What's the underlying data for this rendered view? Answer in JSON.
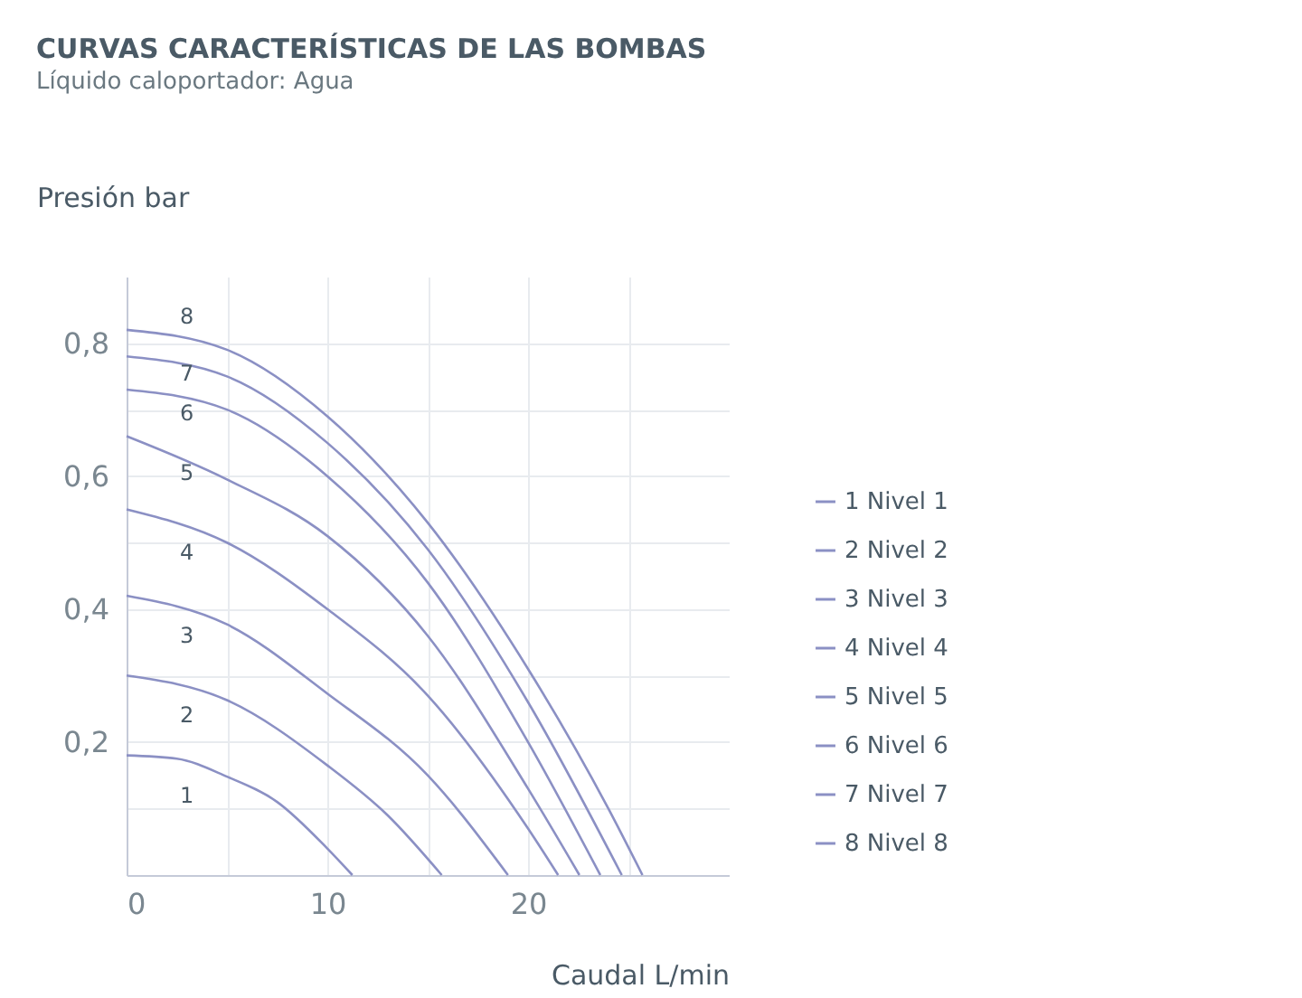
{
  "chart_data": {
    "type": "line",
    "title": "CURVAS CARACTERÍSTICAS DE LAS BOMBAS",
    "subtitle": "Líquido caloportador: Agua",
    "xlabel": "Caudal L/min",
    "ylabel": "Presión bar",
    "xlim": [
      0,
      30
    ],
    "ylim": [
      0,
      0.9
    ],
    "xticks": [
      0,
      {
        "value": 5,
        "label": null
      },
      10,
      {
        "value": 15,
        "label": null
      },
      20,
      {
        "value": 25,
        "label": null
      }
    ],
    "yticks": [
      {
        "value": 0.1,
        "label": null
      },
      {
        "value": 0.2,
        "label": "0,2"
      },
      {
        "value": 0.3,
        "label": null
      },
      {
        "value": 0.4,
        "label": "0,4"
      },
      {
        "value": 0.5,
        "label": null
      },
      {
        "value": 0.6,
        "label": "0,6"
      },
      {
        "value": 0.7,
        "label": null
      },
      {
        "value": 0.8,
        "label": "0,8"
      }
    ],
    "grid": true,
    "legend": "right",
    "marker": "none",
    "line_style": "solid",
    "series": [
      {
        "name": "1 Nivel 1",
        "color": "#8b90c4",
        "x": [
          0,
          2.5,
          5,
          7.5,
          10,
          11.25
        ],
        "values": [
          0.18,
          0.175,
          0.148,
          0.11,
          0.04,
          0
        ]
      },
      {
        "name": "2 Nivel 2",
        "color": "#8b90c4",
        "x": [
          0,
          5,
          10,
          13,
          15.7
        ],
        "values": [
          0.3,
          0.263,
          0.165,
          0.09,
          0
        ]
      },
      {
        "name": "3 Nivel 3",
        "color": "#8b90c4",
        "x": [
          0,
          5,
          10,
          15,
          19
        ],
        "values": [
          0.42,
          0.377,
          0.273,
          0.15,
          0
        ]
      },
      {
        "name": "4 Nivel 4",
        "color": "#8b90c4",
        "x": [
          0,
          5,
          10,
          15,
          20,
          21.5
        ],
        "values": [
          0.55,
          0.5,
          0.4,
          0.27,
          0.07,
          0
        ]
      },
      {
        "name": "5 Nivel 5",
        "color": "#8b90c4",
        "x": [
          0,
          5,
          10,
          15,
          20,
          22.56
        ],
        "values": [
          0.66,
          0.595,
          0.51,
          0.36,
          0.13,
          0
        ]
      },
      {
        "name": "6 Nivel 6",
        "color": "#8b90c4",
        "x": [
          0,
          5,
          10,
          15,
          20,
          23.6
        ],
        "values": [
          0.73,
          0.7,
          0.6,
          0.44,
          0.2,
          0
        ]
      },
      {
        "name": "7 Nivel 7",
        "color": "#8b90c4",
        "x": [
          0,
          5,
          10,
          15,
          20,
          24.67
        ],
        "values": [
          0.78,
          0.75,
          0.65,
          0.49,
          0.26,
          0
        ]
      },
      {
        "name": "8 Nivel 8",
        "color": "#8b90c4",
        "x": [
          0,
          5,
          10,
          15,
          20,
          24,
          25.7
        ],
        "values": [
          0.82,
          0.79,
          0.69,
          0.53,
          0.31,
          0.1,
          0
        ]
      }
    ],
    "annotations": [
      "1",
      "2",
      "3",
      "4",
      "5",
      "6",
      "7",
      "8"
    ]
  }
}
